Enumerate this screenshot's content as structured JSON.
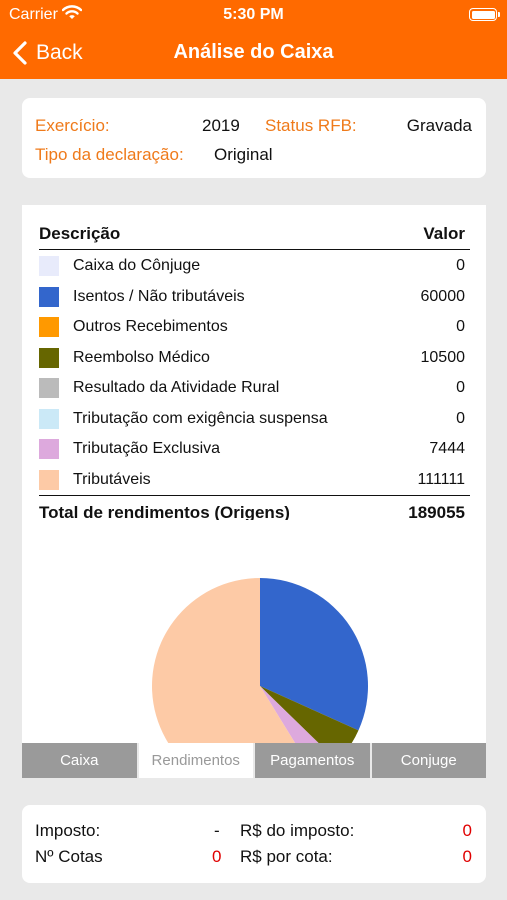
{
  "status_bar": {
    "carrier": "Carrier",
    "time": "5:30 PM"
  },
  "nav": {
    "back_label": "Back",
    "title": "Análise do Caixa"
  },
  "info": {
    "exercicio_label": "Exercício:",
    "exercicio_value": "2019",
    "status_label": "Status RFB:",
    "status_value": "Gravada",
    "tipo_label": "Tipo da declaração:",
    "tipo_value": "Original"
  },
  "table": {
    "header_desc": "Descrição",
    "header_val": "Valor",
    "rows": [
      {
        "desc": "Caixa do Cônjuge",
        "value": "0",
        "color": "#e8ebfb"
      },
      {
        "desc": "Isentos / Não tributáveis",
        "value": "60000",
        "color": "#3366cc"
      },
      {
        "desc": "Outros Recebimentos",
        "value": "0",
        "color": "#ff9900"
      },
      {
        "desc": "Reembolso Médico",
        "value": "10500",
        "color": "#666600"
      },
      {
        "desc": "Resultado da Atividade Rural",
        "value": "0",
        "color": "#bbbbbb"
      },
      {
        "desc": "Tributação com exigência suspensa",
        "value": "0",
        "color": "#cbe9f7"
      },
      {
        "desc": "Tributação Exclusiva",
        "value": "7444",
        "color": "#dda9dd"
      },
      {
        "desc": "Tributáveis",
        "value": "111111",
        "color": "#fdcaa6"
      }
    ],
    "total_label": "Total de rendimentos (Origens)",
    "total_value": "189055"
  },
  "chart_data": {
    "type": "pie",
    "slices": [
      {
        "label": "Isentos / Não tributáveis",
        "value": 60000,
        "color": "#3366cc"
      },
      {
        "label": "Reembolso Médico",
        "value": 10500,
        "color": "#666600"
      },
      {
        "label": "Tributação Exclusiva",
        "value": 7444,
        "color": "#dda9dd"
      },
      {
        "label": "Tributáveis",
        "value": 111111,
        "color": "#fdcaa6"
      }
    ]
  },
  "tabs": [
    {
      "label": "Caixa",
      "active": false
    },
    {
      "label": "Rendimentos",
      "active": true
    },
    {
      "label": "Pagamentos",
      "active": false
    },
    {
      "label": "Conjuge",
      "active": false
    }
  ],
  "summary": {
    "imposto_label": "Imposto:",
    "imposto_value": "-",
    "rs_imposto_label": "R$ do imposto:",
    "rs_imposto_value": "0",
    "cotas_label": "Nº Cotas",
    "cotas_value": "0",
    "rs_cota_label": "R$ por cota:",
    "rs_cota_value": "0"
  }
}
